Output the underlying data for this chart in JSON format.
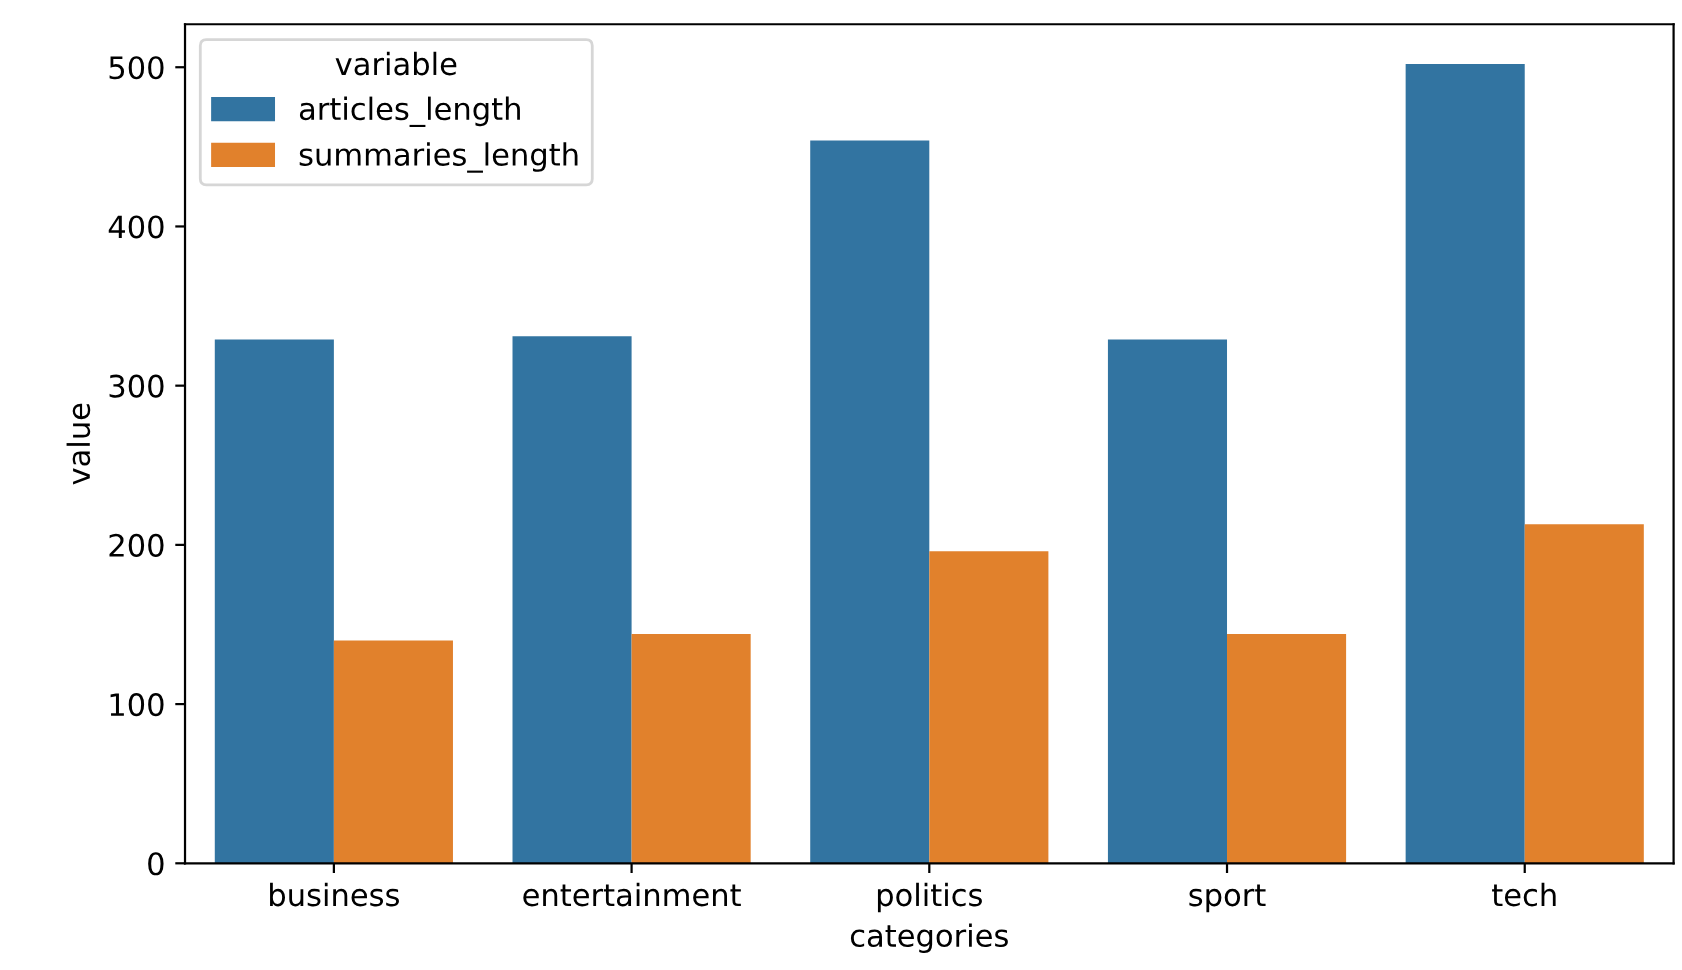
{
  "chart_data": {
    "type": "bar",
    "xlabel": "categories",
    "ylabel": "value",
    "legend_title": "variable",
    "categories": [
      "business",
      "entertainment",
      "politics",
      "sport",
      "tech"
    ],
    "series": [
      {
        "name": "articles_length",
        "color": "#3274a1",
        "values": [
          329,
          331,
          454,
          329,
          502
        ]
      },
      {
        "name": "summaries_length",
        "color": "#e1812c",
        "values": [
          140,
          144,
          196,
          144,
          213
        ]
      }
    ],
    "ylim": [
      0,
      527
    ],
    "yticks": [
      0,
      100,
      200,
      300,
      400,
      500
    ],
    "legend": "top left",
    "grid": false
  }
}
